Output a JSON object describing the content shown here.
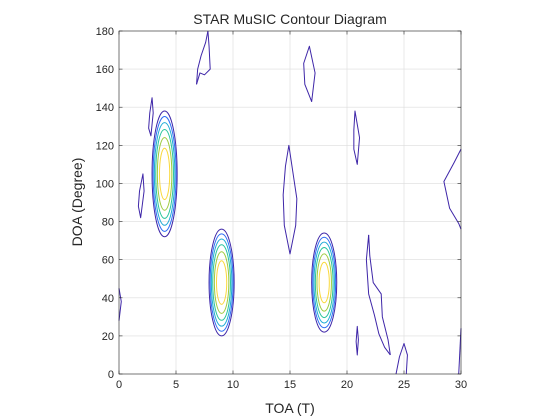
{
  "chart_data": {
    "type": "contour",
    "title": "STAR MuSIC Contour Diagram",
    "xlabel": "TOA (T)",
    "ylabel": "DOA (Degree)",
    "xlim": [
      0,
      30
    ],
    "ylim": [
      0,
      180
    ],
    "xticks": [
      "0",
      "5",
      "10",
      "15",
      "20",
      "25",
      "30"
    ],
    "yticks": [
      "0",
      "20",
      "40",
      "60",
      "80",
      "100",
      "120",
      "140",
      "160",
      "180"
    ],
    "grid": true,
    "colormap": "parula",
    "level_colors": [
      "#3e26a8",
      "#2f6ef5",
      "#1fabd6",
      "#28c59c",
      "#9dca3e",
      "#f9d83b"
    ],
    "peaks": [
      {
        "toa": 4,
        "doa": 105,
        "levels": 6,
        "half_width": 1.1,
        "half_height": 33
      },
      {
        "toa": 9,
        "doa": 48,
        "levels": 6,
        "half_width": 1.1,
        "half_height": 28
      },
      {
        "toa": 18,
        "doa": 48,
        "levels": 6,
        "half_width": 1.1,
        "half_height": 26
      }
    ],
    "contours": [
      {
        "level": 0,
        "closed": true,
        "points": [
          [
            1.9,
            82
          ],
          [
            2.2,
            96
          ],
          [
            2.1,
            105
          ],
          [
            1.8,
            96
          ],
          [
            1.7,
            88
          ]
        ]
      },
      {
        "level": 0,
        "closed": true,
        "points": [
          [
            2.8,
            125
          ],
          [
            3.0,
            137
          ],
          [
            2.9,
            145
          ],
          [
            2.7,
            137
          ],
          [
            2.6,
            129
          ]
        ]
      },
      {
        "level": 0,
        "closed": false,
        "points": [
          [
            6.8,
            152
          ],
          [
            6.9,
            160
          ],
          [
            7.2,
            167
          ],
          [
            7.6,
            174
          ],
          [
            7.8,
            180
          ]
        ]
      },
      {
        "level": 0,
        "closed": false,
        "points": [
          [
            7.8,
            180
          ],
          [
            7.9,
            172
          ],
          [
            8.0,
            160
          ],
          [
            7.5,
            157
          ],
          [
            7.1,
            158
          ],
          [
            6.8,
            152
          ]
        ]
      },
      {
        "level": 0,
        "closed": true,
        "points": [
          [
            14.9,
            120
          ],
          [
            15.6,
            92
          ],
          [
            15.5,
            78
          ],
          [
            15.0,
            63
          ],
          [
            14.5,
            78
          ],
          [
            14.4,
            94
          ],
          [
            14.6,
            109
          ]
        ]
      },
      {
        "level": 0,
        "closed": true,
        "points": [
          [
            16.7,
            172
          ],
          [
            17.2,
            158
          ],
          [
            16.9,
            143
          ],
          [
            16.3,
            152
          ],
          [
            16.2,
            163
          ]
        ]
      },
      {
        "level": 0,
        "closed": true,
        "points": [
          [
            20.7,
            138
          ],
          [
            21.1,
            124
          ],
          [
            20.9,
            110
          ],
          [
            20.6,
            118
          ],
          [
            20.6,
            128
          ]
        ]
      },
      {
        "level": 0,
        "closed": true,
        "points": [
          [
            20.9,
            25
          ],
          [
            21.0,
            18
          ],
          [
            20.9,
            10
          ],
          [
            20.8,
            17
          ]
        ]
      },
      {
        "level": 0,
        "closed": false,
        "points": [
          [
            21.9,
            73
          ],
          [
            22.0,
            62
          ],
          [
            22.3,
            48
          ],
          [
            23.0,
            42
          ],
          [
            23.1,
            30
          ],
          [
            23.6,
            18
          ],
          [
            23.8,
            10
          ]
        ]
      },
      {
        "level": 0,
        "closed": false,
        "points": [
          [
            21.9,
            73
          ],
          [
            21.7,
            60
          ],
          [
            21.9,
            42
          ],
          [
            22.4,
            31
          ],
          [
            22.8,
            21
          ],
          [
            23.3,
            14
          ],
          [
            23.8,
            10
          ]
        ]
      },
      {
        "level": 0,
        "closed": false,
        "points": [
          [
            24.3,
            0
          ],
          [
            24.6,
            9
          ],
          [
            25.0,
            16
          ],
          [
            25.3,
            10
          ],
          [
            25.2,
            0
          ]
        ]
      },
      {
        "level": 0,
        "closed": false,
        "points": [
          [
            30,
            118
          ],
          [
            29.4,
            111
          ],
          [
            28.5,
            101
          ],
          [
            29.0,
            87
          ],
          [
            29.8,
            79
          ],
          [
            30,
            76
          ]
        ]
      },
      {
        "level": 0,
        "closed": false,
        "points": [
          [
            29.8,
            0
          ],
          [
            30,
            24
          ]
        ]
      },
      {
        "level": 0,
        "closed": false,
        "points": [
          [
            0,
            45
          ],
          [
            0.2,
            38
          ],
          [
            0,
            28
          ]
        ]
      }
    ]
  }
}
